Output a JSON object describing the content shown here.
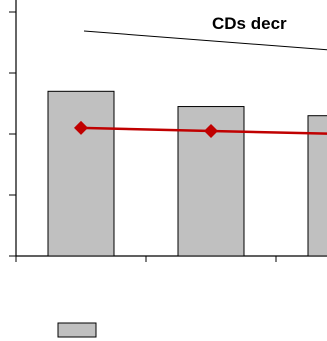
{
  "chart_data": {
    "type": "bar",
    "title": "",
    "xlabel": "",
    "ylabel": "",
    "categories": [
      "",
      "",
      ""
    ],
    "ylim": [
      0,
      4
    ],
    "grid": false,
    "series": [
      {
        "kind": "bar",
        "values": [
          2.7,
          2.45,
          2.3
        ]
      },
      {
        "kind": "line",
        "values": [
          2.1,
          2.05,
          2.0
        ]
      }
    ],
    "annotations": [
      {
        "text": "CDs decr"
      }
    ],
    "legend": {
      "placement": "bottom-left",
      "entries": [
        {
          "swatch": "bar",
          "label": ""
        }
      ]
    }
  },
  "colors": {
    "bar_fill": "#c0c0c0",
    "bar_stroke": "#000000",
    "line": "#c00000",
    "axis": "#000000"
  }
}
